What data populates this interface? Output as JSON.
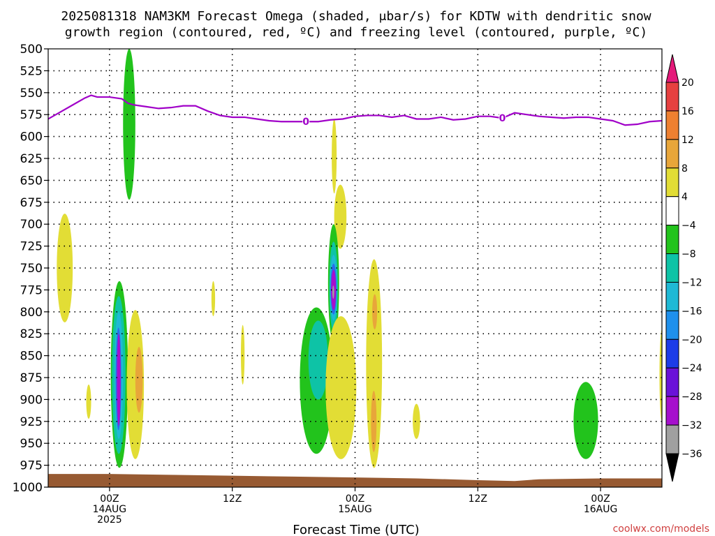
{
  "chart_data": {
    "type": "time-height",
    "title_line1": "2025081318 NAM3KM Forecast Omega (shaded, μbar/s) for KDTW with dendritic snow",
    "title_line2": "growth region (contoured, red, ºC) and freezing level (contoured, purple, ºC)",
    "xlabel": "Forecast Time (UTC)",
    "credit": "coolwx.com/models",
    "x_range_hours": [
      -5,
      45
    ],
    "y_range_hpa": [
      500,
      1000
    ],
    "y_ticks": [
      "500",
      "525",
      "550",
      "575",
      "600",
      "625",
      "650",
      "675",
      "700",
      "725",
      "750",
      "775",
      "800",
      "825",
      "850",
      "875",
      "900",
      "925",
      "950",
      "975",
      "1000"
    ],
    "x_ticks": [
      {
        "hour": 0,
        "line1": "00Z",
        "line2": "14AUG",
        "line3": "2025"
      },
      {
        "hour": 10,
        "line1": "12Z",
        "line2": "",
        "line3": ""
      },
      {
        "hour": 20,
        "line1": "00Z",
        "line2": "15AUG",
        "line3": ""
      },
      {
        "hour": 30,
        "line1": "12Z",
        "line2": "",
        "line3": ""
      },
      {
        "hour": 40,
        "line1": "00Z",
        "line2": "16AUG",
        "line3": ""
      }
    ],
    "freezing_level": {
      "color": "#a000c8",
      "label": "0",
      "label_hours": [
        16,
        32
      ],
      "hours": [
        -5,
        -4,
        -3,
        -2,
        -1.5,
        -1,
        0,
        1,
        1.5,
        2,
        3,
        4,
        5,
        6,
        7,
        8,
        9,
        10,
        11,
        12,
        13,
        14,
        15,
        16,
        17,
        18,
        19,
        20,
        21,
        22,
        23,
        24,
        25,
        26,
        27,
        28,
        29,
        30,
        31,
        32,
        33,
        34,
        35,
        36,
        37,
        38,
        39,
        40,
        41,
        42,
        43,
        44,
        45
      ],
      "hpa": [
        580,
        572,
        564,
        556,
        553,
        555,
        555,
        557,
        562,
        564,
        566,
        568,
        567,
        565,
        565,
        571,
        576,
        578,
        578,
        580,
        582,
        583,
        583,
        583,
        583,
        581,
        580,
        577,
        576,
        576,
        578,
        576,
        580,
        580,
        578,
        581,
        580,
        577,
        577,
        579,
        573,
        575,
        577,
        578,
        579,
        578,
        578,
        580,
        582,
        587,
        586,
        583,
        582
      ]
    },
    "omega_regions": [
      {
        "shape": "blob",
        "x0": 1.1,
        "x1": 2.1,
        "p0": 500,
        "p1": 672,
        "color": "#22c31c"
      },
      {
        "shape": "blob",
        "x0": -4.3,
        "x1": -3.0,
        "p0": 688,
        "p1": 812,
        "color": "#e2dd35"
      },
      {
        "shape": "blob",
        "x0": -1.9,
        "x1": -1.5,
        "p0": 883,
        "p1": 922,
        "color": "#e2dd35"
      },
      {
        "shape": "blob",
        "x0": 0.1,
        "x1": 1.5,
        "p0": 765,
        "p1": 978,
        "color": "#22c31c"
      },
      {
        "shape": "blob",
        "x0": 0.2,
        "x1": 1.3,
        "p0": 782,
        "p1": 962,
        "color": "#0ec3a6"
      },
      {
        "shape": "blob",
        "x0": 0.4,
        "x1": 1.1,
        "p0": 800,
        "p1": 945,
        "color": "#1fb9d5"
      },
      {
        "shape": "blob",
        "x0": 0.5,
        "x1": 0.95,
        "p0": 818,
        "p1": 935,
        "color": "#2a6aec"
      },
      {
        "shape": "blob",
        "x0": 0.6,
        "x1": 0.9,
        "p0": 825,
        "p1": 930,
        "color": "#a60fcd"
      },
      {
        "shape": "blob",
        "x0": 1.4,
        "x1": 2.8,
        "p0": 798,
        "p1": 968,
        "color": "#e2dd35"
      },
      {
        "shape": "blob",
        "x0": 2.1,
        "x1": 2.7,
        "p0": 840,
        "p1": 915,
        "color": "#e8a63a"
      },
      {
        "shape": "blob",
        "x0": 8.3,
        "x1": 8.6,
        "p0": 765,
        "p1": 805,
        "color": "#e2dd35"
      },
      {
        "shape": "blob",
        "x0": 10.7,
        "x1": 11.0,
        "p0": 815,
        "p1": 883,
        "color": "#e2dd35"
      },
      {
        "shape": "blob",
        "x0": 18.1,
        "x1": 18.5,
        "p0": 580,
        "p1": 665,
        "color": "#e2dd35"
      },
      {
        "shape": "blob",
        "x0": 18.3,
        "x1": 19.3,
        "p0": 655,
        "p1": 728,
        "color": "#e2dd35"
      },
      {
        "shape": "blob",
        "x0": 17.8,
        "x1": 18.7,
        "p0": 700,
        "p1": 835,
        "color": "#22c31c"
      },
      {
        "shape": "blob",
        "x0": 15.5,
        "x1": 18.2,
        "p0": 795,
        "p1": 962,
        "color": "#22c31c"
      },
      {
        "shape": "blob",
        "x0": 16.2,
        "x1": 17.8,
        "p0": 810,
        "p1": 900,
        "color": "#0ec3a6"
      },
      {
        "shape": "blob",
        "x0": 17.9,
        "x1": 18.6,
        "p0": 720,
        "p1": 822,
        "color": "#0ec3a6"
      },
      {
        "shape": "blob",
        "x0": 17.95,
        "x1": 18.55,
        "p0": 735,
        "p1": 810,
        "color": "#1fb9d5"
      },
      {
        "shape": "blob",
        "x0": 18.0,
        "x1": 18.5,
        "p0": 745,
        "p1": 803,
        "color": "#2a6aec"
      },
      {
        "shape": "blob",
        "x0": 18.05,
        "x1": 18.45,
        "p0": 752,
        "p1": 798,
        "color": "#a60fcd"
      },
      {
        "shape": "blob",
        "x0": 18.15,
        "x1": 18.3,
        "p0": 770,
        "p1": 785,
        "color": "#a0a0a0"
      },
      {
        "shape": "blob",
        "x0": 17.6,
        "x1": 20.1,
        "p0": 805,
        "p1": 968,
        "color": "#e2dd35"
      },
      {
        "shape": "blob",
        "x0": 20.9,
        "x1": 22.2,
        "p0": 740,
        "p1": 978,
        "color": "#e2dd35"
      },
      {
        "shape": "blob",
        "x0": 21.4,
        "x1": 21.8,
        "p0": 780,
        "p1": 820,
        "color": "#e8a63a"
      },
      {
        "shape": "blob",
        "x0": 21.3,
        "x1": 21.75,
        "p0": 890,
        "p1": 960,
        "color": "#e8a63a"
      },
      {
        "shape": "blob",
        "x0": 24.7,
        "x1": 25.3,
        "p0": 905,
        "p1": 945,
        "color": "#e2dd35"
      },
      {
        "shape": "blob",
        "x0": 37.8,
        "x1": 39.8,
        "p0": 880,
        "p1": 968,
        "color": "#22c31c"
      },
      {
        "shape": "blob",
        "x0": 44.8,
        "x1": 45.2,
        "p0": 820,
        "p1": 925,
        "color": "#e2dd35"
      }
    ],
    "terrain": {
      "color": "#975a32",
      "hours": [
        -5,
        0,
        5,
        10,
        15,
        20,
        25,
        30,
        33,
        35,
        40,
        45
      ],
      "hpa": [
        985,
        985,
        986,
        987,
        988,
        989,
        990,
        992,
        993,
        991,
        990,
        990
      ]
    },
    "colorbar": {
      "colors": [
        "#e41a7a",
        "#e64040",
        "#ee8030",
        "#e8a63a",
        "#e2dd35",
        "#ffffff",
        "#22c31c",
        "#0ec3a6",
        "#1fb9d5",
        "#1f90ec",
        "#1c3ce8",
        "#6a12d8",
        "#a60fcd",
        "#a0a0a0",
        "#000000"
      ],
      "labels": [
        "20",
        "16",
        "12",
        "8",
        "4",
        "−4",
        "−8",
        "−12",
        "−16",
        "−20",
        "−24",
        "−28",
        "−32",
        "−36"
      ]
    }
  }
}
